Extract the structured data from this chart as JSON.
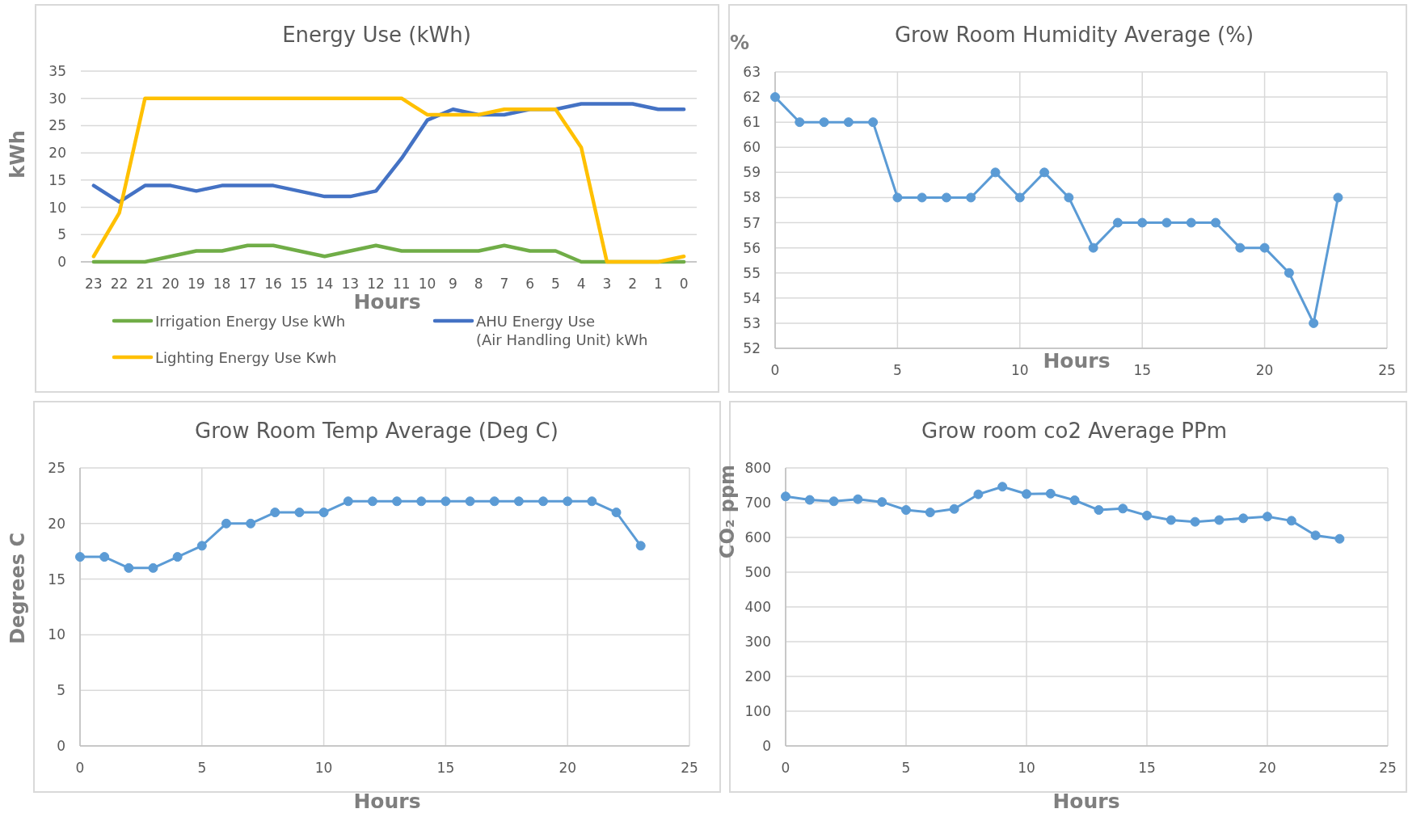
{
  "chart_data": [
    {
      "type": "line",
      "title": "Energy Use (kWh)",
      "xlabel": "Hours",
      "ylabel": "kWh",
      "categories": [
        "23",
        "22",
        "21",
        "20",
        "19",
        "18",
        "17",
        "16",
        "15",
        "14",
        "13",
        "12",
        "11",
        "10",
        "9",
        "8",
        "7",
        "6",
        "5",
        "4",
        "3",
        "2",
        "1",
        "0"
      ],
      "ylim": [
        0,
        35
      ],
      "yticks": [
        0,
        5,
        10,
        15,
        20,
        25,
        30,
        35
      ],
      "grid": "y",
      "legend": "bottom",
      "series": [
        {
          "name": "Irrigation Energy Use kWh",
          "color": "#70ad47",
          "values": [
            0,
            0,
            0,
            1,
            2,
            2,
            3,
            3,
            2,
            1,
            2,
            3,
            2,
            2,
            2,
            2,
            3,
            2,
            2,
            0,
            0,
            0,
            0,
            0
          ]
        },
        {
          "name": "AHU Energy Use (Air Handling Unit) kWh",
          "color": "#4472c4",
          "values": [
            14,
            11,
            14,
            14,
            13,
            14,
            14,
            14,
            13,
            12,
            12,
            13,
            19,
            26,
            28,
            27,
            27,
            28,
            28,
            29,
            29,
            29,
            28,
            28
          ]
        },
        {
          "name": "Lighting Energy Use Kwh",
          "color": "#ffc000",
          "values": [
            1,
            9,
            30,
            30,
            30,
            30,
            30,
            30,
            30,
            30,
            30,
            30,
            30,
            27,
            27,
            27,
            28,
            28,
            28,
            21,
            0,
            0,
            0,
            1
          ]
        }
      ]
    },
    {
      "type": "line",
      "title": "Grow Room Humidity Average (%)",
      "xlabel": "Hours",
      "ylabel": "%",
      "x": [
        0,
        1,
        2,
        3,
        4,
        5,
        6,
        7,
        8,
        9,
        10,
        11,
        12,
        13,
        14,
        15,
        16,
        17,
        18,
        19,
        20,
        21,
        22,
        23
      ],
      "values": [
        62,
        61,
        61,
        61,
        61,
        58,
        58,
        58,
        58,
        59,
        58,
        59,
        58,
        56,
        57,
        57,
        57,
        57,
        57,
        56,
        56,
        55,
        53,
        58
      ],
      "color": "#5b9bd5",
      "xlim": [
        0,
        25
      ],
      "xticks": [
        0,
        5,
        10,
        15,
        20,
        25
      ],
      "ylim": [
        52,
        63
      ],
      "yticks": [
        52,
        53,
        54,
        55,
        56,
        57,
        58,
        59,
        60,
        61,
        62,
        63
      ],
      "grid": true,
      "marker": "circle"
    },
    {
      "type": "line",
      "title": "Grow Room Temp Average (Deg C)",
      "xlabel": "Hours",
      "ylabel": "Degrees C",
      "x": [
        0,
        1,
        2,
        3,
        4,
        5,
        6,
        7,
        8,
        9,
        10,
        11,
        12,
        13,
        14,
        15,
        16,
        17,
        18,
        19,
        20,
        21,
        22,
        23
      ],
      "values": [
        17,
        17,
        16,
        16,
        17,
        18,
        20,
        20,
        21,
        21,
        21,
        22,
        22,
        22,
        22,
        22,
        22,
        22,
        22,
        22,
        22,
        22,
        21,
        18
      ],
      "color": "#5b9bd5",
      "xlim": [
        0,
        25
      ],
      "xticks": [
        0,
        5,
        10,
        15,
        20,
        25
      ],
      "ylim": [
        0,
        25
      ],
      "yticks": [
        0,
        5,
        10,
        15,
        20,
        25
      ],
      "grid": true,
      "marker": "circle"
    },
    {
      "type": "line",
      "title": "Grow room co2 Average PPm",
      "xlabel": "Hours",
      "ylabel": "CO₂ ppm",
      "x": [
        0,
        1,
        2,
        3,
        4,
        5,
        6,
        7,
        8,
        9,
        10,
        11,
        12,
        13,
        14,
        15,
        16,
        17,
        18,
        19,
        20,
        21,
        22,
        23
      ],
      "values": [
        718,
        708,
        704,
        710,
        702,
        679,
        672,
        682,
        724,
        746,
        725,
        726,
        707,
        679,
        683,
        663,
        650,
        645,
        650,
        655,
        660,
        648,
        606,
        596
      ],
      "color": "#5b9bd5",
      "xlim": [
        0,
        25
      ],
      "xticks": [
        0,
        5,
        10,
        15,
        20,
        25
      ],
      "ylim": [
        0,
        800
      ],
      "yticks": [
        0,
        100,
        200,
        300,
        400,
        500,
        600,
        700,
        800
      ],
      "grid": true,
      "marker": "circle"
    }
  ]
}
